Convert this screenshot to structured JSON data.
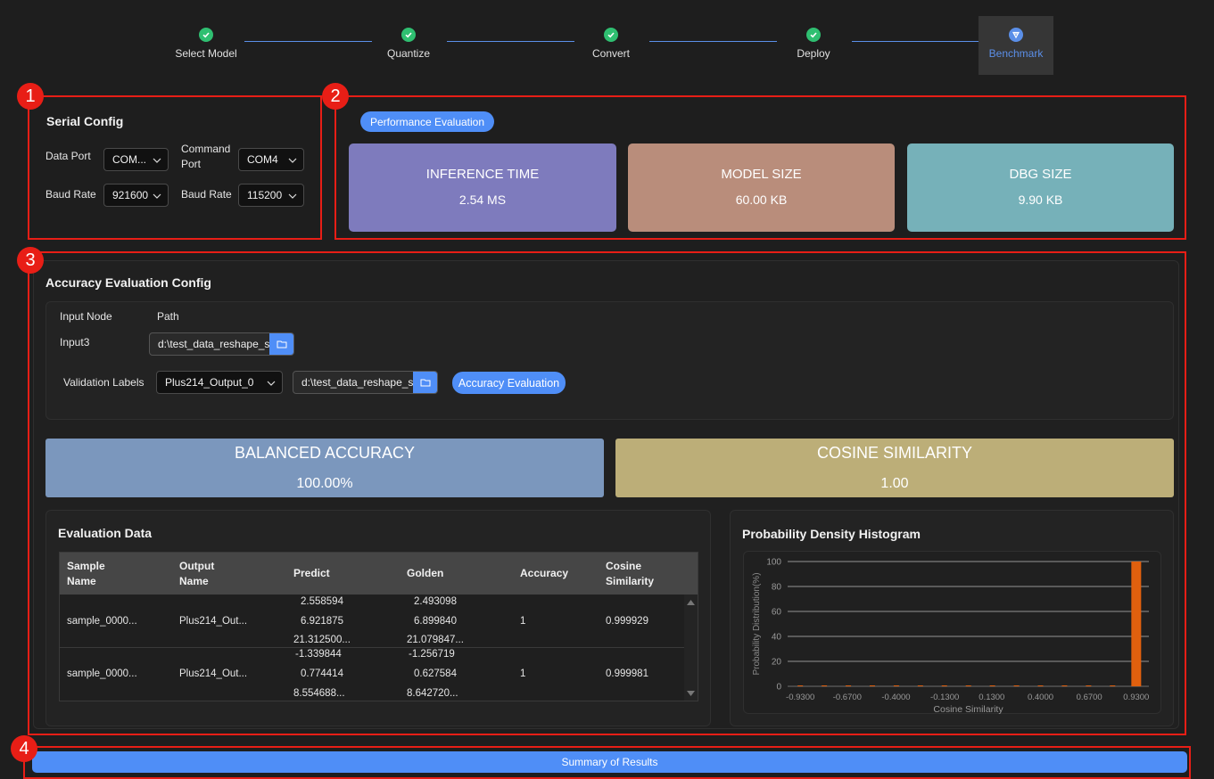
{
  "stepper": {
    "steps": [
      {
        "label": "Select Model"
      },
      {
        "label": "Quantize"
      },
      {
        "label": "Convert"
      },
      {
        "label": "Deploy"
      },
      {
        "label": "Benchmark"
      }
    ]
  },
  "callouts": [
    "1",
    "2",
    "3",
    "4"
  ],
  "serial_config": {
    "title": "Serial Config",
    "data_port_label": "Data Port",
    "data_port_value": "COM...",
    "command_port_label_1": "Command",
    "command_port_label_2": "Port",
    "command_port_value": "COM4",
    "baud_rate_label": "Baud Rate",
    "baud_rate_value": "921600",
    "baud_rate2_label": "Baud Rate",
    "baud_rate2_value": "115200"
  },
  "performance": {
    "badge": "Performance Evaluation",
    "cards": [
      {
        "key": "INFERENCE TIME",
        "value": "2.54 MS",
        "color": "#7e7bbd"
      },
      {
        "key": "MODEL SIZE",
        "value": "60.00 KB",
        "color": "#b98d7b"
      },
      {
        "key": "DBG SIZE",
        "value": "9.90 KB",
        "color": "#76b1b9"
      }
    ]
  },
  "accuracy_config": {
    "title": "Accuracy Evaluation Config",
    "input_node_header": "Input Node",
    "path_header": "Path",
    "input_name": "Input3",
    "input_path": "d:\\test_data_reshape_s",
    "validation_labels_label": "Validation Labels",
    "validation_select": "Plus214_Output_0",
    "validation_path": "d:\\test_data_reshape_s",
    "accuracy_button": "Accuracy Evaluation"
  },
  "metrics": {
    "balanced_accuracy_label": "BALANCED ACCURACY",
    "balanced_accuracy_value": "100.00%",
    "balanced_color": "#7b97bd",
    "cosine_label": "COSINE SIMILARITY",
    "cosine_value": "1.00",
    "cosine_color": "#bcae78"
  },
  "evaluation_data": {
    "title": "Evaluation Data",
    "headers": {
      "sample_1": "Sample",
      "sample_2": "Name",
      "output_1": "Output",
      "output_2": "Name",
      "predict": "Predict",
      "golden": "Golden",
      "accuracy": "Accuracy",
      "cos_1": "Cosine",
      "cos_2": "Similarity"
    },
    "rows": [
      {
        "sample": "sample_0000...",
        "output": "Plus214_Out...",
        "predict": [
          "2.558594",
          "6.921875",
          "21.312500..."
        ],
        "golden": [
          "2.493098",
          "6.899840",
          "21.079847..."
        ],
        "accuracy": "1",
        "cosine": "0.999929"
      },
      {
        "sample": "sample_0000...",
        "output": "Plus214_Out...",
        "predict": [
          "-1.339844",
          "0.774414",
          "8.554688..."
        ],
        "golden": [
          "-1.256719",
          "0.627584",
          "8.642720..."
        ],
        "accuracy": "1",
        "cosine": "0.999981"
      }
    ]
  },
  "histogram": {
    "title": "Probability Density Histogram",
    "chart_data": {
      "type": "bar",
      "xlabel": "Cosine  Similarity",
      "ylabel": "Probability Distribution(%)",
      "categories": [
        "-0.9300",
        "-0.6700",
        "-0.4000",
        "-0.1300",
        "0.1300",
        "0.4000",
        "0.6700",
        "0.9300"
      ],
      "xlim": [
        -1.0,
        1.0
      ],
      "ylim": [
        0,
        100
      ],
      "yticks": [
        0,
        20,
        40,
        60,
        80,
        100
      ],
      "bars": [
        {
          "x": 0.93,
          "value": 100
        }
      ],
      "bar_color": "#e0600e",
      "grid": true
    }
  },
  "summary_button": "Summary of Results"
}
